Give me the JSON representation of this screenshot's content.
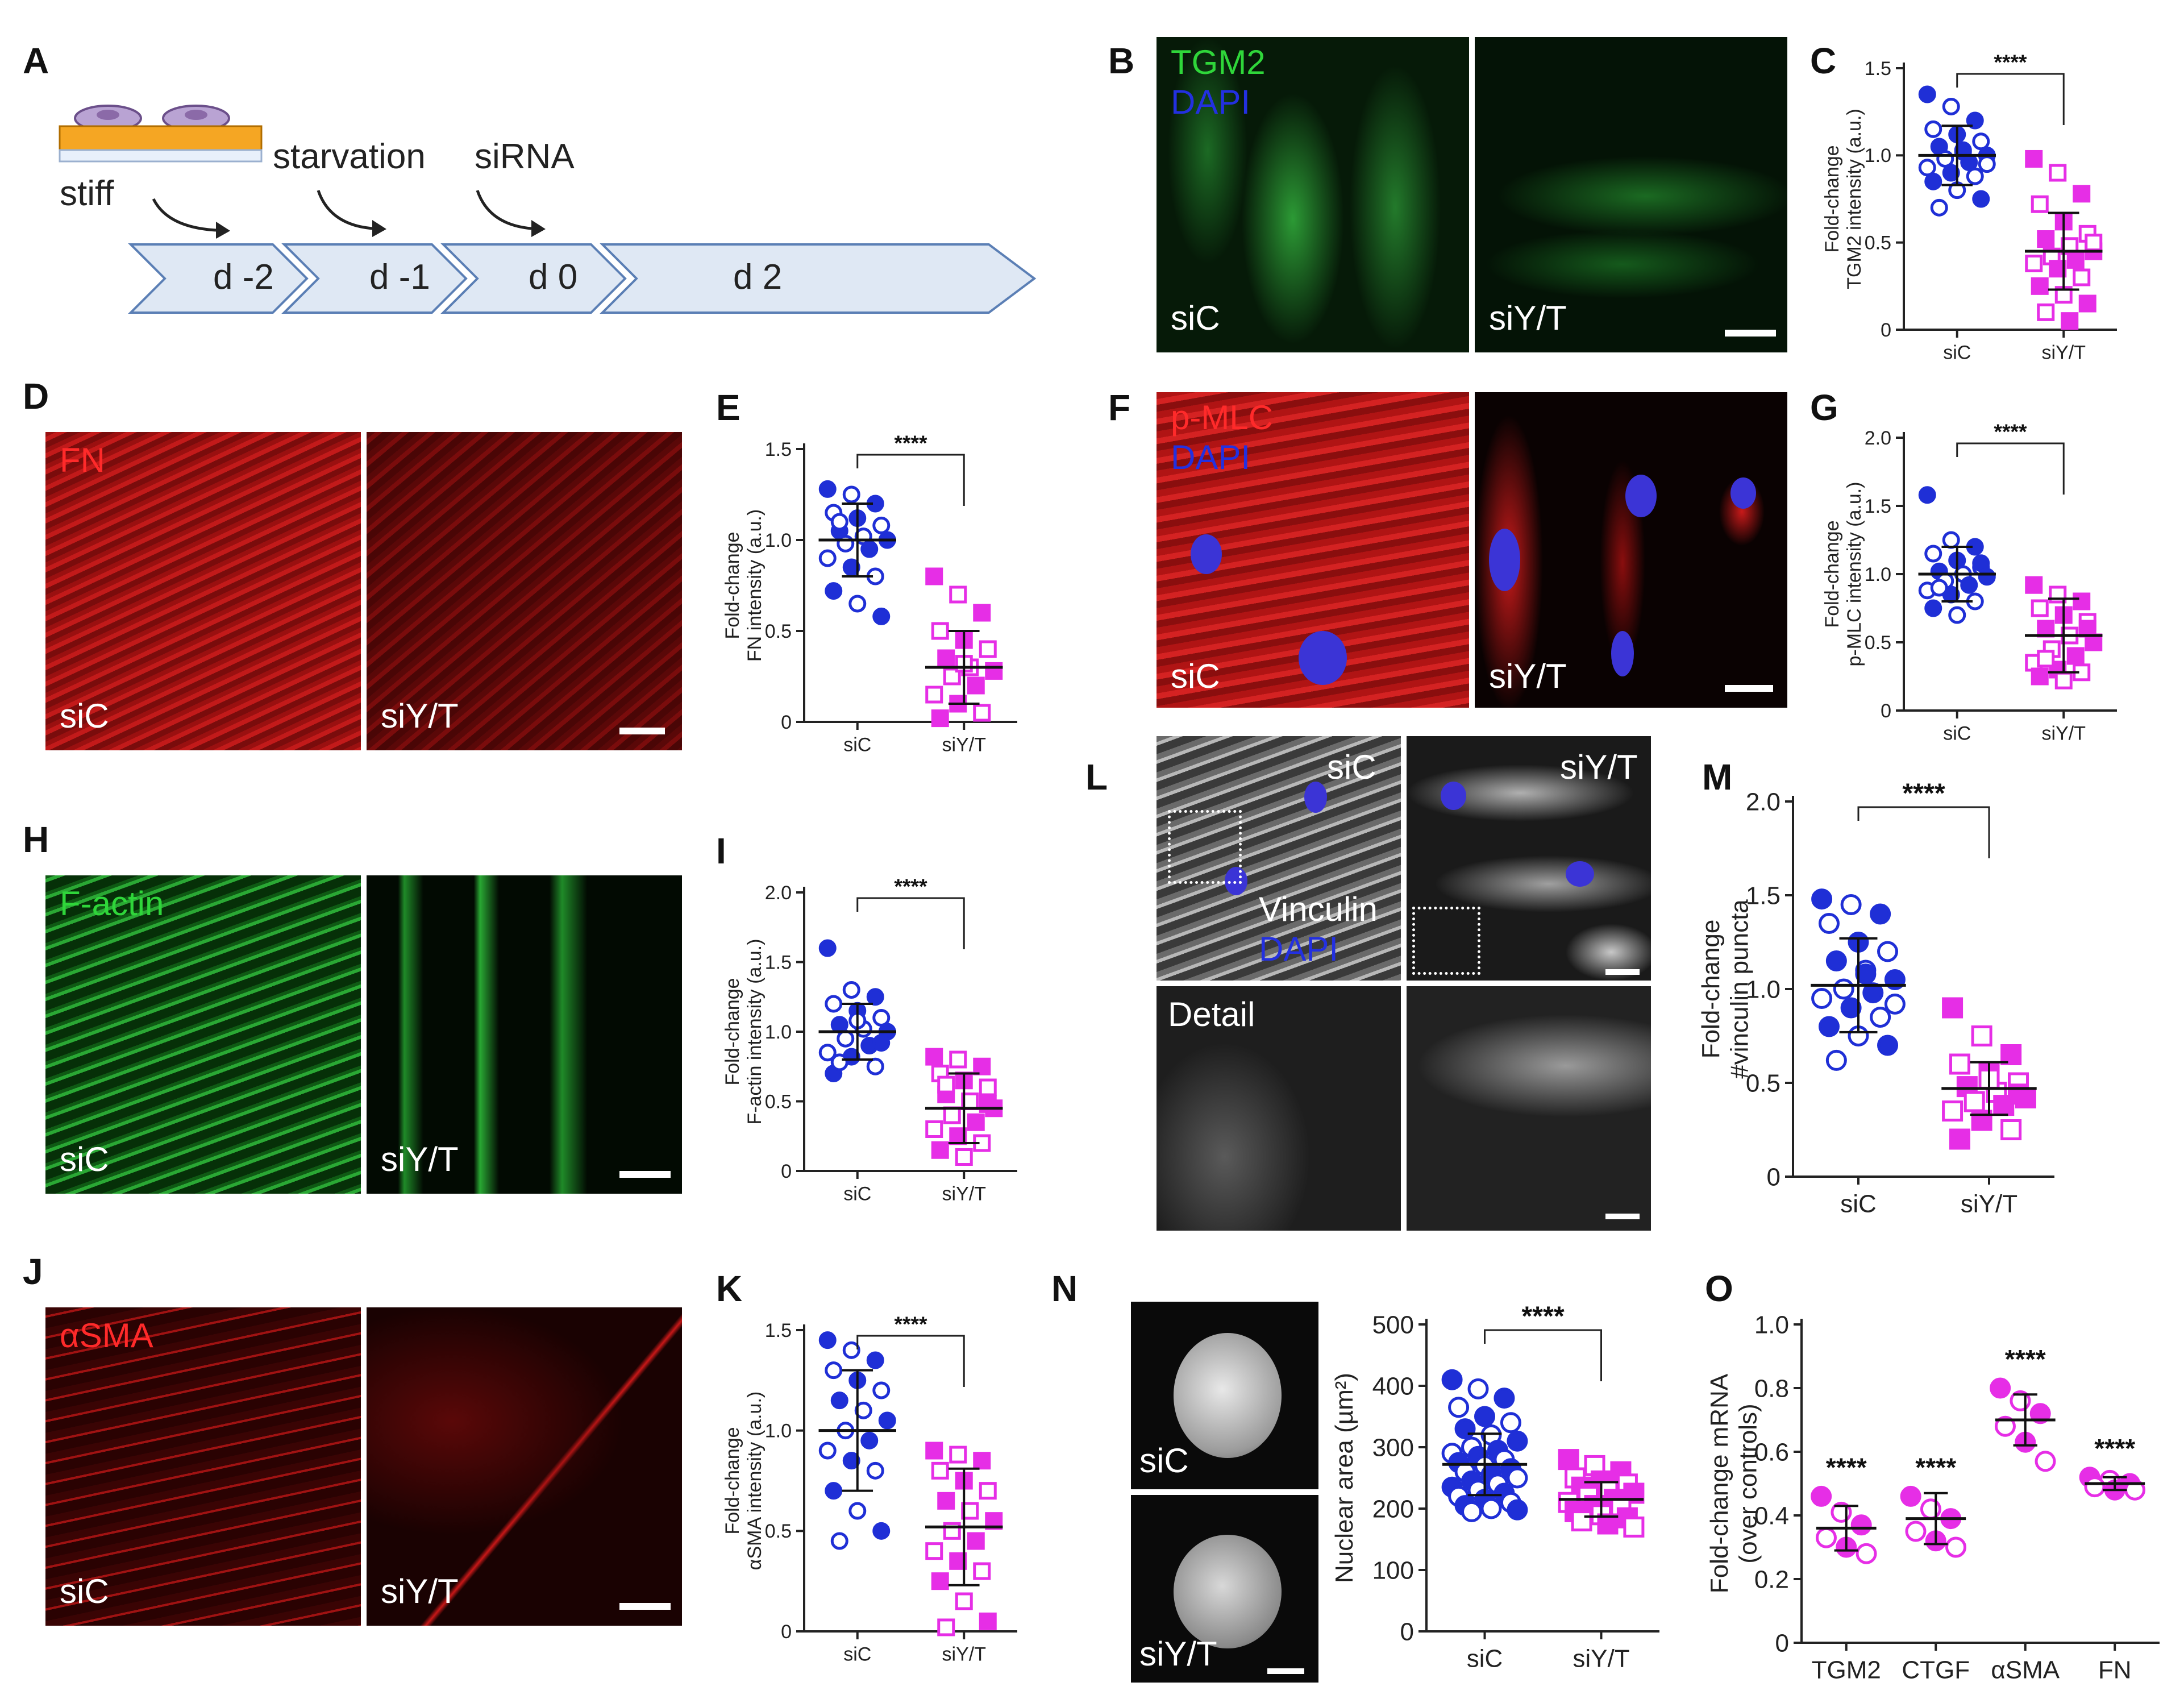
{
  "panels": {
    "A": {
      "letter": "A",
      "substrate": "stiff",
      "steps": [
        "starvation",
        "siRNA"
      ],
      "days": [
        "d -2",
        "d -1",
        "d 0",
        "d 2"
      ]
    },
    "B": {
      "letter": "B",
      "stains": [
        "TGM2",
        "DAPI"
      ],
      "conditions": [
        "siC",
        "siY/T"
      ]
    },
    "D": {
      "letter": "D",
      "stains": [
        "FN"
      ],
      "conditions": [
        "siC",
        "siY/T"
      ]
    },
    "F": {
      "letter": "F",
      "stains": [
        "p-MLC",
        "DAPI"
      ],
      "conditions": [
        "siC",
        "siY/T"
      ]
    },
    "H": {
      "letter": "H",
      "stains": [
        "F-actin"
      ],
      "conditions": [
        "siC",
        "siY/T"
      ]
    },
    "J": {
      "letter": "J",
      "stains": [
        "αSMA"
      ],
      "conditions": [
        "siC",
        "siY/T"
      ]
    },
    "L": {
      "letter": "L",
      "stains": [
        "Vinculin",
        "DAPI"
      ],
      "conditions": [
        "siC",
        "siY/T"
      ],
      "detail": "Detail"
    },
    "N": {
      "letter": "N",
      "conditions": [
        "siC",
        "siY/T"
      ]
    }
  },
  "colors": {
    "siC": "#1f2fd6",
    "siYT": "#e62ee6",
    "green": "#2fd63a",
    "red": "#e01818",
    "blue": "#2330e0",
    "arrow": "#dfe8f4"
  },
  "chart_data": [
    {
      "id": "C",
      "type": "scatter",
      "ylabel": [
        "Fold-change",
        "TGM2 intensity (a.u.)"
      ],
      "ylim": [
        0,
        1.5
      ],
      "yticks": [
        0,
        0.5,
        1.0,
        1.5
      ],
      "categories": [
        "siC",
        "siY/T"
      ],
      "significance": "****",
      "series": [
        {
          "name": "siC",
          "mean": 1.0,
          "sd": 0.17,
          "values": [
            1.35,
            1.28,
            1.2,
            1.15,
            1.12,
            1.08,
            1.05,
            1.03,
            1.0,
            0.98,
            0.96,
            0.93,
            0.9,
            0.88,
            0.85,
            0.8,
            0.75,
            0.7,
            1.02,
            0.95
          ]
        },
        {
          "name": "siY/T",
          "mean": 0.45,
          "sd": 0.22,
          "values": [
            0.98,
            0.9,
            0.78,
            0.72,
            0.62,
            0.55,
            0.52,
            0.48,
            0.45,
            0.42,
            0.4,
            0.38,
            0.35,
            0.3,
            0.25,
            0.2,
            0.15,
            0.1,
            0.05,
            0.5
          ]
        }
      ]
    },
    {
      "id": "E",
      "type": "scatter",
      "ylabel": [
        "Fold-change",
        "FN intensity (a.u.)"
      ],
      "ylim": [
        0,
        1.5
      ],
      "yticks": [
        0,
        0.5,
        1.0,
        1.5
      ],
      "categories": [
        "siC",
        "siY/T"
      ],
      "significance": "****",
      "series": [
        {
          "name": "siC",
          "mean": 1.0,
          "sd": 0.2,
          "values": [
            1.28,
            1.25,
            1.2,
            1.15,
            1.12,
            1.08,
            1.05,
            1.02,
            1.0,
            0.98,
            0.95,
            0.9,
            0.85,
            0.8,
            0.72,
            0.65,
            0.58,
            1.1
          ]
        },
        {
          "name": "siY/T",
          "mean": 0.3,
          "sd": 0.2,
          "values": [
            0.8,
            0.7,
            0.6,
            0.5,
            0.45,
            0.4,
            0.35,
            0.3,
            0.28,
            0.25,
            0.2,
            0.15,
            0.1,
            0.05,
            0.02,
            0.32
          ]
        }
      ]
    },
    {
      "id": "G",
      "type": "scatter",
      "ylabel": [
        "Fold-change",
        "p-MLC intensity (a.u.)"
      ],
      "ylim": [
        0,
        2.0
      ],
      "yticks": [
        0,
        0.5,
        1.0,
        1.5,
        2.0
      ],
      "categories": [
        "siC",
        "siY/T"
      ],
      "significance": "****",
      "series": [
        {
          "name": "siC",
          "mean": 1.0,
          "sd": 0.2,
          "values": [
            1.58,
            1.25,
            1.2,
            1.15,
            1.1,
            1.05,
            1.02,
            1.0,
            0.98,
            0.95,
            0.92,
            0.88,
            0.85,
            0.8,
            0.75,
            0.7,
            1.08,
            0.9
          ]
        },
        {
          "name": "siY/T",
          "mean": 0.55,
          "sd": 0.27,
          "values": [
            0.92,
            0.85,
            0.8,
            0.75,
            0.7,
            0.65,
            0.6,
            0.55,
            0.5,
            0.45,
            0.4,
            0.35,
            0.3,
            0.28,
            0.25,
            0.22,
            0.6,
            0.38
          ]
        }
      ]
    },
    {
      "id": "I",
      "type": "scatter",
      "ylabel": [
        "Fold-change",
        "F-actin intensity (a.u.)"
      ],
      "ylim": [
        0,
        2.0
      ],
      "yticks": [
        0,
        0.5,
        1.0,
        1.5,
        2.0
      ],
      "categories": [
        "siC",
        "siY/T"
      ],
      "significance": "****",
      "series": [
        {
          "name": "siC",
          "mean": 1.0,
          "sd": 0.2,
          "values": [
            1.6,
            1.3,
            1.25,
            1.2,
            1.15,
            1.1,
            1.05,
            1.02,
            1.0,
            0.95,
            0.9,
            0.85,
            0.82,
            0.75,
            0.7,
            1.08,
            0.92,
            0.78
          ]
        },
        {
          "name": "siY/T",
          "mean": 0.45,
          "sd": 0.25,
          "values": [
            0.82,
            0.8,
            0.75,
            0.7,
            0.65,
            0.6,
            0.55,
            0.5,
            0.45,
            0.4,
            0.35,
            0.3,
            0.25,
            0.2,
            0.15,
            0.1,
            0.48,
            0.62
          ]
        }
      ]
    },
    {
      "id": "K",
      "type": "scatter",
      "ylabel": [
        "Fold-change",
        "αSMA intensity (a.u.)"
      ],
      "ylim": [
        0,
        1.5
      ],
      "yticks": [
        0,
        0.5,
        1.0,
        1.5
      ],
      "categories": [
        "siC",
        "siY/T"
      ],
      "significance": "****",
      "series": [
        {
          "name": "siC",
          "mean": 1.0,
          "sd": 0.3,
          "values": [
            1.45,
            1.4,
            1.35,
            1.3,
            1.25,
            1.2,
            1.15,
            1.1,
            1.05,
            1.0,
            0.95,
            0.9,
            0.85,
            0.8,
            0.7,
            0.6,
            0.5,
            0.45
          ]
        },
        {
          "name": "siY/T",
          "mean": 0.52,
          "sd": 0.29,
          "values": [
            0.9,
            0.88,
            0.85,
            0.8,
            0.75,
            0.7,
            0.65,
            0.6,
            0.55,
            0.5,
            0.45,
            0.4,
            0.35,
            0.3,
            0.25,
            0.15,
            0.05,
            0.02
          ]
        }
      ]
    },
    {
      "id": "M",
      "type": "scatter",
      "ylabel": [
        "Fold-change",
        "#vinculin puncta"
      ],
      "ylim": [
        0,
        2.0
      ],
      "yticks": [
        0,
        0.5,
        1.0,
        1.5,
        2.0
      ],
      "categories": [
        "siC",
        "siY/T"
      ],
      "significance": "****",
      "series": [
        {
          "name": "siC",
          "mean": 1.02,
          "sd": 0.25,
          "values": [
            1.48,
            1.45,
            1.4,
            1.35,
            1.25,
            1.2,
            1.15,
            1.1,
            1.05,
            1.0,
            0.98,
            0.95,
            0.9,
            0.85,
            0.8,
            0.75,
            0.7,
            0.62,
            1.08,
            0.92
          ]
        },
        {
          "name": "siY/T",
          "mean": 0.47,
          "sd": 0.14,
          "values": [
            0.9,
            0.75,
            0.65,
            0.6,
            0.55,
            0.5,
            0.48,
            0.45,
            0.42,
            0.4,
            0.38,
            0.35,
            0.3,
            0.25,
            0.2,
            0.52,
            0.44
          ]
        }
      ]
    },
    {
      "id": "N",
      "type": "scatter",
      "ylabel": [
        "Nuclear area (µm²)"
      ],
      "ylim": [
        0,
        500
      ],
      "yticks": [
        0,
        100,
        200,
        300,
        400,
        500
      ],
      "categories": [
        "siC",
        "siY/T"
      ],
      "significance": "****",
      "series": [
        {
          "name": "siC",
          "mean": 272,
          "sd": 50,
          "values": [
            410,
            395,
            380,
            365,
            350,
            340,
            330,
            320,
            310,
            300,
            295,
            290,
            285,
            280,
            275,
            270,
            265,
            260,
            255,
            250,
            245,
            240,
            235,
            230,
            225,
            220,
            215,
            210,
            205,
            200,
            198,
            195
          ]
        },
        {
          "name": "siY/T",
          "mean": 215,
          "sd": 28,
          "values": [
            280,
            270,
            260,
            250,
            245,
            240,
            235,
            230,
            225,
            220,
            215,
            210,
            205,
            200,
            195,
            190,
            185,
            180,
            175,
            170
          ]
        }
      ]
    },
    {
      "id": "O",
      "type": "scatter",
      "ylabel": [
        "Fold-change mRNA",
        "(over controls)"
      ],
      "ylim": [
        0,
        1.0
      ],
      "yticks": [
        0,
        0.2,
        0.4,
        0.6,
        0.8,
        1.0
      ],
      "categories": [
        "TGM2",
        "CTGF",
        "αSMA",
        "FN"
      ],
      "significance": "****",
      "series": [
        {
          "name": "siY/T",
          "means": [
            0.36,
            0.39,
            0.7,
            0.5
          ],
          "sds": [
            0.07,
            0.08,
            0.08,
            0.02
          ],
          "values": [
            [
              0.46,
              0.41,
              0.37,
              0.33,
              0.3,
              0.28
            ],
            [
              0.46,
              0.42,
              0.39,
              0.35,
              0.32,
              0.3
            ],
            [
              0.8,
              0.76,
              0.72,
              0.68,
              0.63,
              0.57
            ],
            [
              0.52,
              0.51,
              0.5,
              0.49,
              0.48,
              0.48
            ]
          ]
        }
      ]
    }
  ]
}
